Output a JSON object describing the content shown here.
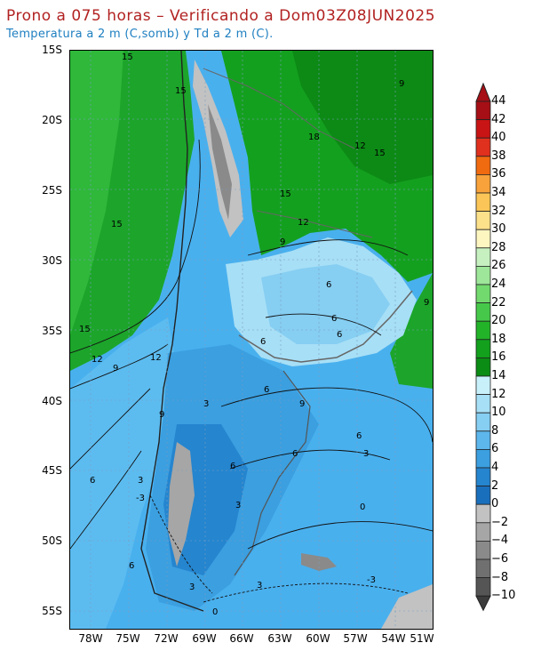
{
  "header": {
    "title": "Prono a 075 horas – Verificando a Dom03Z08JUN2025",
    "subtitle": "Temperatura a 2 m (C,somb) y Td a 2 m (C)."
  },
  "axes": {
    "lat_labels": [
      "15S",
      "20S",
      "25S",
      "30S",
      "35S",
      "40S",
      "45S",
      "50S",
      "55S"
    ],
    "lon_labels": [
      "78W",
      "75W",
      "72W",
      "69W",
      "66W",
      "63W",
      "60W",
      "57W",
      "54W",
      "51W"
    ]
  },
  "colorbar": {
    "labels": [
      "44",
      "42",
      "40",
      "38",
      "36",
      "34",
      "32",
      "30",
      "28",
      "26",
      "24",
      "22",
      "20",
      "18",
      "16",
      "14",
      "12",
      "10",
      "8",
      "6",
      "4",
      "2",
      "0",
      "−2",
      "−4",
      "−6",
      "−8",
      "−10"
    ],
    "colors": [
      "#a50f15",
      "#c81414",
      "#e0301e",
      "#f06a10",
      "#f7a23b",
      "#fbc657",
      "#fde08a",
      "#fef6c0",
      "#c7f0c0",
      "#9ee69a",
      "#72d96e",
      "#46c94a",
      "#23b329",
      "#12a01d",
      "#0b8c14",
      "#c8f0fb",
      "#a7dff6",
      "#86cef2",
      "#5db6ec",
      "#3b9fe0",
      "#2585cf",
      "#1a6fbd",
      "#c2c2c2",
      "#a6a6a6",
      "#8a8a8a",
      "#707070",
      "#555555"
    ]
  },
  "contour_labels": [
    {
      "text": "15"
    },
    {
      "text": "15"
    },
    {
      "text": "18"
    },
    {
      "text": "12"
    },
    {
      "text": "15"
    },
    {
      "text": "9"
    },
    {
      "text": "15"
    },
    {
      "text": "15"
    },
    {
      "text": "12"
    },
    {
      "text": "9"
    },
    {
      "text": "6"
    },
    {
      "text": "6"
    },
    {
      "text": "6"
    },
    {
      "text": "6"
    },
    {
      "text": "6"
    },
    {
      "text": "9"
    },
    {
      "text": "9"
    },
    {
      "text": "12"
    },
    {
      "text": "9"
    },
    {
      "text": "6"
    },
    {
      "text": "6"
    },
    {
      "text": "3"
    },
    {
      "text": "3"
    },
    {
      "text": "3"
    },
    {
      "text": "0"
    },
    {
      "text": "-3"
    },
    {
      "text": "3"
    },
    {
      "text": "-3"
    },
    {
      "text": "0"
    },
    {
      "text": "3"
    },
    {
      "text": "6"
    },
    {
      "text": "6"
    },
    {
      "text": "12"
    },
    {
      "text": "15"
    },
    {
      "text": "9"
    },
    {
      "text": "6"
    },
    {
      "text": "3"
    }
  ]
}
